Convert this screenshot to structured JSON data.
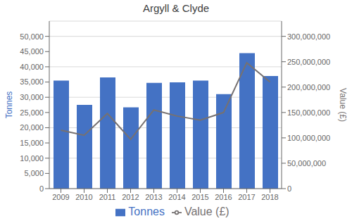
{
  "chart_data": {
    "type": "bar",
    "title": "Argyll & Clyde",
    "categories": [
      "2009",
      "2010",
      "2011",
      "2012",
      "2013",
      "2014",
      "2015",
      "2016",
      "2017",
      "2018"
    ],
    "series": [
      {
        "name": "Tonnes",
        "type": "bar",
        "color": "#4472C4",
        "values": [
          35500,
          27500,
          36500,
          26700,
          34700,
          34900,
          35500,
          31000,
          44500,
          37000
        ]
      },
      {
        "name": "Value (£)",
        "type": "line",
        "axis": "y2",
        "color": "#767171",
        "values": [
          115000000,
          105000000,
          148000000,
          97000000,
          155000000,
          143000000,
          135000000,
          150000000,
          248000000,
          210000000
        ]
      }
    ],
    "ylabel": "Tonnes",
    "y2label": "Value (£)",
    "ylim": [
      0,
      55000
    ],
    "yticks": [
      0,
      {
        "value": 5000,
        "label": "5,000"
      },
      {
        "value": 10000,
        "label": "10,000"
      },
      {
        "value": 15000,
        "label": "15,000"
      },
      {
        "value": 20000,
        "label": "20,000"
      },
      {
        "value": 25000,
        "label": "25,000"
      },
      {
        "value": 30000,
        "label": "30,000"
      },
      {
        "value": 35000,
        "label": "35,000"
      },
      {
        "value": 40000,
        "label": "40,000"
      },
      {
        "value": 45000,
        "label": "45,000"
      },
      {
        "value": 50000,
        "label": "50,000"
      }
    ],
    "y2lim": [
      0,
      330000000
    ],
    "y2ticks": [
      0,
      {
        "value": 50000000,
        "label": "50,000,000"
      },
      {
        "value": 100000000,
        "label": "100,000,000"
      },
      {
        "value": 150000000,
        "label": "150,000,000"
      },
      {
        "value": 200000000,
        "label": "200,000,000"
      },
      {
        "value": 250000000,
        "label": "250,000,000"
      },
      {
        "value": 300000000,
        "label": "300,000,000"
      }
    ],
    "grid": true,
    "legend": "bottom"
  }
}
